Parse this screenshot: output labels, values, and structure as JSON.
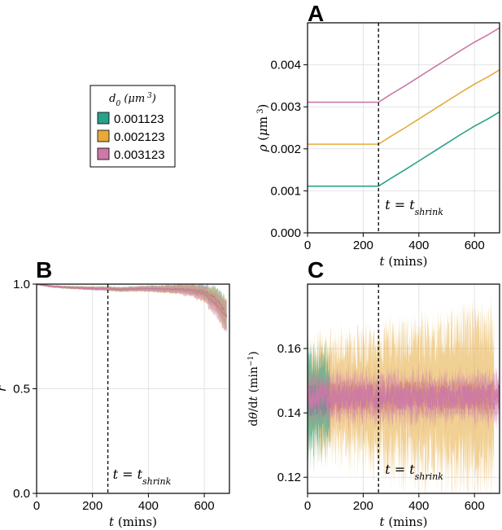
{
  "panel_labels": [
    "A",
    "B",
    "C"
  ],
  "legend": {
    "title_html": "d<tspan baseline-shift='sub' font-size='9'>0</tspan> (μm<tspan baseline-shift='super' font-size='9'> 3</tspan>)",
    "entries": [
      {
        "label": "0.001123",
        "color": "#2aa18a"
      },
      {
        "label": "0.002123",
        "color": "#e6a93a"
      },
      {
        "label": "0.003123",
        "color": "#cc79a7"
      }
    ]
  },
  "shrink_annotation": "t = t_shrink",
  "colors": {
    "green": "#2aa18a",
    "orange": "#e6a93a",
    "pink": "#cc79a7"
  },
  "chart_data": [
    {
      "id": "A",
      "type": "line",
      "xlabel": "t (mins)",
      "ylabel": "ρ (μm ³)",
      "xlim": [
        0,
        690
      ],
      "ylim": [
        0,
        0.005
      ],
      "xticks": [
        0,
        200,
        400,
        600
      ],
      "yticks": [
        0.0,
        0.001,
        0.002,
        0.003,
        0.004
      ],
      "ytick_labels": [
        "0.000",
        "0.001",
        "0.002",
        "0.003",
        "0.004"
      ],
      "vline_x": 255,
      "series": [
        {
          "color": "#2aa18a",
          "x": [
            0,
            255,
            300,
            350,
            400,
            450,
            500,
            550,
            600,
            650,
            690
          ],
          "y": [
            0.00111,
            0.00111,
            0.0013,
            0.0015,
            0.00171,
            0.00192,
            0.00213,
            0.00234,
            0.00254,
            0.00272,
            0.00288
          ]
        },
        {
          "color": "#e6a93a",
          "x": [
            0,
            255,
            300,
            350,
            400,
            450,
            500,
            550,
            600,
            650,
            690
          ],
          "y": [
            0.00211,
            0.00211,
            0.0023,
            0.0025,
            0.00271,
            0.00292,
            0.00313,
            0.00334,
            0.00354,
            0.00372,
            0.00388
          ]
        },
        {
          "color": "#cc79a7",
          "x": [
            0,
            255,
            300,
            350,
            400,
            450,
            500,
            550,
            600,
            650,
            690
          ],
          "y": [
            0.00311,
            0.00311,
            0.0033,
            0.0035,
            0.00371,
            0.00392,
            0.00413,
            0.00434,
            0.00454,
            0.00472,
            0.00488
          ]
        }
      ]
    },
    {
      "id": "B",
      "type": "line",
      "xlabel": "t (mins)",
      "ylabel": "r",
      "xlim": [
        0,
        690
      ],
      "ylim": [
        0,
        1.0
      ],
      "xticks": [
        0,
        200,
        400,
        600
      ],
      "yticks": [
        0.0,
        0.5,
        1.0
      ],
      "ytick_labels": [
        "0.0",
        "0.5",
        "1.0"
      ],
      "vline_x": 255,
      "series": [
        {
          "color": "#2aa18a",
          "x": [
            0,
            50,
            100,
            150,
            200,
            255,
            300,
            350,
            400,
            450,
            500,
            550,
            600,
            630,
            660,
            680
          ],
          "y": [
            1.0,
            0.99,
            0.985,
            0.983,
            0.98,
            0.979,
            0.975,
            0.978,
            0.979,
            0.978,
            0.977,
            0.975,
            0.965,
            0.94,
            0.9,
            0.85
          ],
          "band": [
            0.004,
            0.005,
            0.006,
            0.007,
            0.008,
            0.009,
            0.01,
            0.01,
            0.012,
            0.014,
            0.016,
            0.02,
            0.03,
            0.045,
            0.06,
            0.07
          ]
        },
        {
          "color": "#e6a93a",
          "x": [
            0,
            50,
            100,
            150,
            200,
            255,
            300,
            350,
            400,
            450,
            500,
            550,
            600,
            630,
            660,
            680
          ],
          "y": [
            1.0,
            0.99,
            0.985,
            0.982,
            0.98,
            0.978,
            0.974,
            0.977,
            0.978,
            0.977,
            0.976,
            0.972,
            0.955,
            0.93,
            0.89,
            0.84
          ],
          "band": [
            0.004,
            0.005,
            0.006,
            0.007,
            0.008,
            0.009,
            0.01,
            0.011,
            0.013,
            0.016,
            0.02,
            0.025,
            0.035,
            0.05,
            0.065,
            0.075
          ]
        },
        {
          "color": "#cc79a7",
          "x": [
            0,
            50,
            100,
            150,
            200,
            255,
            300,
            350,
            400,
            450,
            500,
            550,
            600,
            630,
            660,
            680
          ],
          "y": [
            1.0,
            0.99,
            0.985,
            0.982,
            0.979,
            0.978,
            0.974,
            0.977,
            0.978,
            0.977,
            0.975,
            0.97,
            0.95,
            0.92,
            0.88,
            0.84
          ],
          "band": [
            0.004,
            0.005,
            0.006,
            0.007,
            0.008,
            0.009,
            0.01,
            0.011,
            0.013,
            0.016,
            0.02,
            0.026,
            0.036,
            0.05,
            0.065,
            0.075
          ]
        }
      ]
    },
    {
      "id": "C",
      "type": "line",
      "xlabel": "t (mins)",
      "ylabel": "dθ/dt (min⁻¹)",
      "xlim": [
        0,
        690
      ],
      "ylim": [
        0.115,
        0.18
      ],
      "xticks": [
        0,
        200,
        400,
        600
      ],
      "yticks": [
        0.12,
        0.14,
        0.16
      ],
      "ytick_labels": [
        "0.12",
        "0.14",
        "0.16"
      ],
      "vline_x": 255,
      "mean": 0.145,
      "series": [
        {
          "color": "#2aa18a",
          "x_range": [
            0,
            80
          ],
          "mean": 0.144,
          "band": 0.013
        },
        {
          "color": "#e6a93a",
          "x_range": [
            0,
            670
          ],
          "mean": 0.145,
          "band": 0.018
        },
        {
          "color": "#cc79a7",
          "x_range": [
            0,
            690
          ],
          "mean": 0.145,
          "band": 0.006
        }
      ]
    }
  ]
}
